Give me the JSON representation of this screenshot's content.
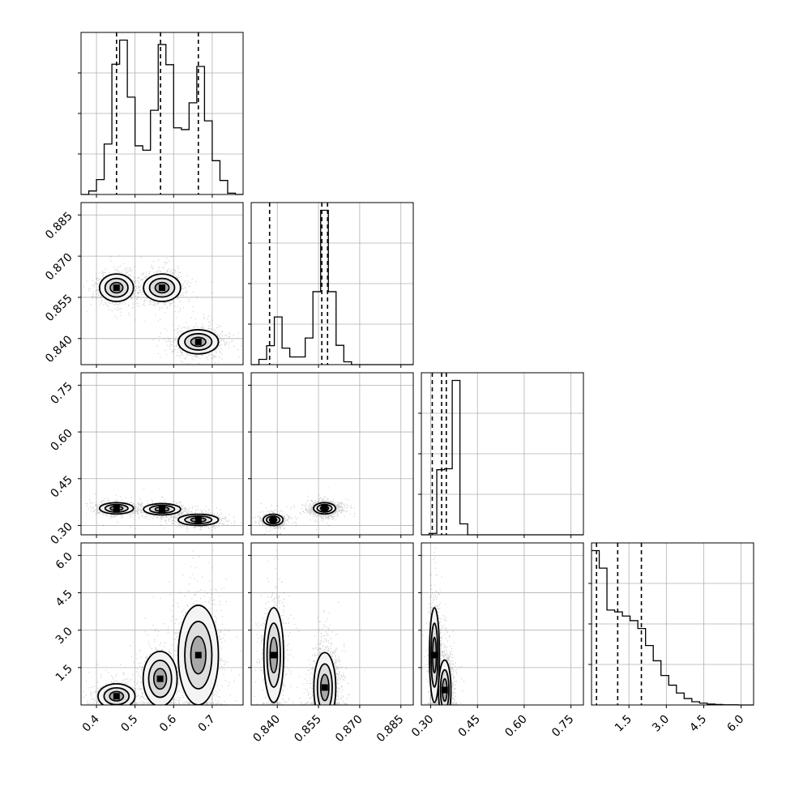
{
  "chart_data": {
    "type": "corner",
    "variables": 4,
    "dims": [
      {
        "range": [
          0.36,
          0.78
        ],
        "ticks": [
          0.4,
          0.5,
          0.6,
          0.7
        ],
        "tick_labels": [
          "0.4",
          "0.5",
          "0.6",
          "0.7"
        ]
      },
      {
        "range": [
          0.8305,
          0.8895
        ],
        "ticks": [
          0.84,
          0.855,
          0.87,
          0.885
        ],
        "tick_labels": [
          "0.840",
          "0.855",
          "0.870",
          "0.885"
        ]
      },
      {
        "range": [
          0.27,
          0.79
        ],
        "ticks": [
          0.3,
          0.45,
          0.6,
          0.75
        ],
        "tick_labels": [
          "0.30",
          "0.45",
          "0.60",
          "0.75"
        ]
      },
      {
        "range": [
          0.0,
          6.5
        ],
        "ticks": [
          1.5,
          3.0,
          4.5,
          6.0
        ],
        "tick_labels": [
          "1.5",
          "3.0",
          "4.5",
          "6.0"
        ]
      }
    ],
    "histograms": [
      {
        "bin_range": [
          0.36,
          0.78
        ],
        "counts": [
          0,
          0.8,
          3.4,
          11.5,
          29.7,
          35.2,
          22.2,
          11.1,
          10.1,
          19.2,
          34.2,
          29.6,
          15.2,
          14.8,
          20.9,
          29.2,
          16.8,
          7.7,
          3.2,
          0.3,
          0
        ],
        "quantiles": [
          0.452,
          0.566,
          0.664
        ]
      },
      {
        "bin_range": [
          0.8305,
          0.8895
        ],
        "counts": [
          0,
          1.5,
          5.4,
          13.6,
          4.7,
          2.2,
          2.2,
          7.6,
          20.8,
          44.0,
          20.8,
          5.5,
          0.8,
          0,
          0,
          0,
          0,
          0,
          0,
          0,
          0
        ],
        "quantiles": [
          0.8372,
          0.8562,
          0.8583
        ]
      },
      {
        "bin_range": [
          0.27,
          0.79
        ],
        "counts": [
          0,
          0.3,
          13.7,
          13.9,
          32.5,
          2.3,
          0,
          0,
          0,
          0,
          0,
          0,
          0,
          0,
          0,
          0,
          0,
          0,
          0,
          0,
          0
        ],
        "quantiles": [
          0.305,
          0.335,
          0.35
        ]
      },
      {
        "bin_range": [
          0.0,
          6.5
        ],
        "counts": [
          33.5,
          29.7,
          20.6,
          20.2,
          19.3,
          18.3,
          16.6,
          12.9,
          9.6,
          6.4,
          4.3,
          2.6,
          1.4,
          0.7,
          0.4,
          0.2,
          0.1,
          0.05,
          0.03,
          0,
          0
        ],
        "quantiles": [
          0.2,
          1.05,
          2.0
        ]
      }
    ],
    "scatter_panels": [
      {
        "x": 0,
        "y": 1,
        "clusters": [
          {
            "cx": 0.452,
            "cy": 0.8585,
            "sx": 0.022,
            "sy": 0.0025,
            "w": 0.33
          },
          {
            "cx": 0.57,
            "cy": 0.8585,
            "sx": 0.024,
            "sy": 0.0025,
            "w": 0.34
          },
          {
            "cx": 0.664,
            "cy": 0.8388,
            "sx": 0.026,
            "sy": 0.0022,
            "w": 0.33
          }
        ]
      },
      {
        "x": 0,
        "y": 2,
        "clusters": [
          {
            "cx": 0.452,
            "cy": 0.355,
            "sx": 0.022,
            "sy": 0.009,
            "w": 0.33
          },
          {
            "cx": 0.57,
            "cy": 0.352,
            "sx": 0.024,
            "sy": 0.009,
            "w": 0.34
          },
          {
            "cx": 0.664,
            "cy": 0.318,
            "sx": 0.026,
            "sy": 0.009,
            "w": 0.33
          }
        ]
      },
      {
        "x": 1,
        "y": 2,
        "clusters": [
          {
            "cx": 0.8385,
            "cy": 0.318,
            "sx": 0.0018,
            "sy": 0.009,
            "w": 0.33
          },
          {
            "cx": 0.8572,
            "cy": 0.355,
            "sx": 0.002,
            "sy": 0.009,
            "w": 0.67
          }
        ]
      },
      {
        "x": 0,
        "y": 3,
        "clusters": [
          {
            "cx": 0.452,
            "cy": 0.35,
            "sx": 0.024,
            "sy": 0.25,
            "w": 0.3
          },
          {
            "cx": 0.565,
            "cy": 1.05,
            "sx": 0.022,
            "sy": 0.55,
            "w": 0.3
          },
          {
            "cx": 0.664,
            "cy": 2.0,
            "sx": 0.026,
            "sy": 1.0,
            "w": 0.4
          }
        ]
      },
      {
        "x": 1,
        "y": 3,
        "clusters": [
          {
            "cx": 0.8387,
            "cy": 2.0,
            "sx": 0.0018,
            "sy": 0.95,
            "w": 0.35
          },
          {
            "cx": 0.8573,
            "cy": 0.7,
            "sx": 0.002,
            "sy": 0.7,
            "w": 0.65
          }
        ]
      },
      {
        "x": 2,
        "y": 3,
        "clusters": [
          {
            "cx": 0.312,
            "cy": 2.0,
            "sx": 0.008,
            "sy": 0.95,
            "w": 0.35
          },
          {
            "cx": 0.345,
            "cy": 0.6,
            "sx": 0.01,
            "sy": 0.6,
            "w": 0.65
          }
        ]
      }
    ],
    "grid": true,
    "legend": "none",
    "colors": {
      "line": "#000000",
      "grid": "#b0b0b0",
      "contour_fill": "#f4f4f4",
      "peak": "#000000"
    }
  }
}
